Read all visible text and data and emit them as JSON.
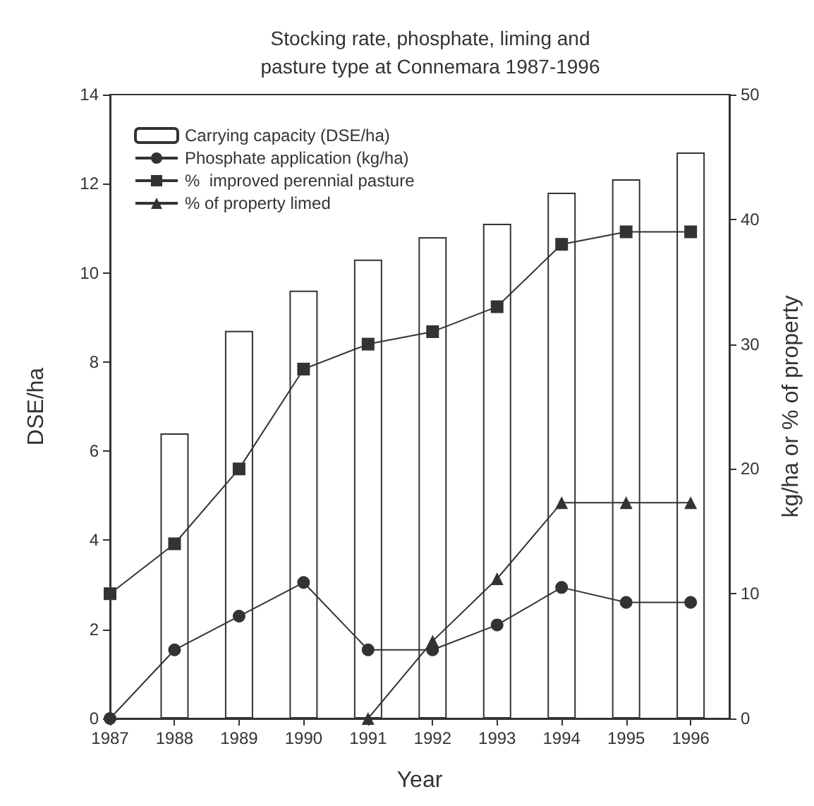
{
  "chart_data": {
    "type": "bar",
    "title": "Stocking rate, phosphate, liming and\npasture type at Connemara 1987-1996",
    "xlabel": "Year",
    "ylabel": "DSE/ha",
    "y2label": "kg/ha or % of property",
    "x": [
      1987,
      1988,
      1989,
      1990,
      1991,
      1992,
      1993,
      1994,
      1995,
      1996
    ],
    "xlim": [
      1987,
      1996.6
    ],
    "xticks": [
      1987,
      1988,
      1989,
      1990,
      1991,
      1992,
      1993,
      1994,
      1995,
      1996
    ],
    "ylim": [
      0,
      14
    ],
    "yticks": [
      0,
      2,
      4,
      6,
      8,
      10,
      12,
      14
    ],
    "y2lim": [
      0,
      50
    ],
    "y2ticks": [
      0,
      10,
      20,
      30,
      40,
      50
    ],
    "legend": "top left",
    "grid": false,
    "series": [
      {
        "name": "Carrying capacity (DSE/ha)",
        "color": "#ffffff",
        "values": [
          null,
          6.4,
          8.7,
          9.6,
          10.3,
          10.8,
          11.1,
          11.8,
          12.1,
          12.7
        ]
      },
      {
        "name": "Phosphate application (kg/ha)",
        "type": "line",
        "axis": "y2",
        "marker": "circle",
        "color": "#333333",
        "values": [
          0,
          5.5,
          8.2,
          10.9,
          5.5,
          5.5,
          7.5,
          10.5,
          9.3,
          9.3
        ]
      },
      {
        "name": "%  improved perennial pasture",
        "type": "line",
        "axis": "y2",
        "marker": "square",
        "color": "#333333",
        "values": [
          10,
          14,
          20,
          28,
          30,
          31,
          33,
          38,
          39,
          39
        ]
      },
      {
        "name": "% of property limed",
        "type": "line",
        "axis": "y2",
        "marker": "triangle",
        "color": "#333333",
        "values": [
          null,
          null,
          null,
          null,
          0,
          6.2,
          11.2,
          17.3,
          17.3,
          17.3
        ]
      }
    ]
  }
}
